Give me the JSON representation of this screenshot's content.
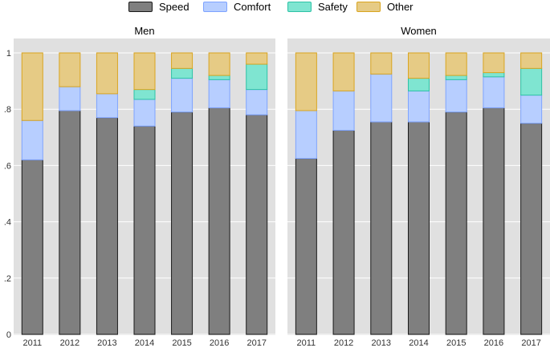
{
  "legend": {
    "items": [
      {
        "name": "Speed",
        "color": "#7f7f7f",
        "border": "#1a1a1a"
      },
      {
        "name": "Comfort",
        "color": "#b7ceff",
        "border": "#7ea3ff"
      },
      {
        "name": "Safety",
        "color": "#7fe5d1",
        "border": "#2ec2a6"
      },
      {
        "name": "Other",
        "color": "#e6cb85",
        "border": "#d9a520"
      }
    ]
  },
  "chart_data": [
    {
      "type": "bar",
      "stacked": true,
      "title": "Men",
      "categories": [
        "2011",
        "2012",
        "2013",
        "2014",
        "2015",
        "2016",
        "2017"
      ],
      "ylim": [
        0,
        1
      ],
      "yticks": [
        0,
        0.2,
        0.4,
        0.6,
        0.8,
        1
      ],
      "ytick_labels": [
        "0",
        ".2",
        ".4",
        ".6",
        ".8",
        "1"
      ],
      "series": [
        {
          "name": "Speed",
          "values": [
            0.62,
            0.795,
            0.77,
            0.74,
            0.79,
            0.805,
            0.78
          ]
        },
        {
          "name": "Comfort",
          "values": [
            0.14,
            0.085,
            0.085,
            0.095,
            0.12,
            0.1,
            0.09
          ]
        },
        {
          "name": "Safety",
          "values": [
            0.0,
            0.0,
            0.0,
            0.035,
            0.035,
            0.015,
            0.09
          ]
        },
        {
          "name": "Other",
          "values": [
            0.24,
            0.12,
            0.145,
            0.13,
            0.055,
            0.08,
            0.04
          ]
        }
      ]
    },
    {
      "type": "bar",
      "stacked": true,
      "title": "Women",
      "categories": [
        "2011",
        "2012",
        "2013",
        "2014",
        "2015",
        "2016",
        "2017"
      ],
      "ylim": [
        0,
        1
      ],
      "yticks": [
        0,
        0.2,
        0.4,
        0.6,
        0.8,
        1
      ],
      "ytick_labels": [
        "0",
        ".2",
        ".4",
        ".6",
        ".8",
        "1"
      ],
      "series": [
        {
          "name": "Speed",
          "values": [
            0.625,
            0.725,
            0.755,
            0.755,
            0.79,
            0.805,
            0.75
          ]
        },
        {
          "name": "Comfort",
          "values": [
            0.17,
            0.14,
            0.17,
            0.11,
            0.115,
            0.11,
            0.1
          ]
        },
        {
          "name": "Safety",
          "values": [
            0.0,
            0.0,
            0.0,
            0.045,
            0.015,
            0.015,
            0.095
          ]
        },
        {
          "name": "Other",
          "values": [
            0.205,
            0.135,
            0.075,
            0.09,
            0.08,
            0.07,
            0.055
          ]
        }
      ]
    }
  ]
}
